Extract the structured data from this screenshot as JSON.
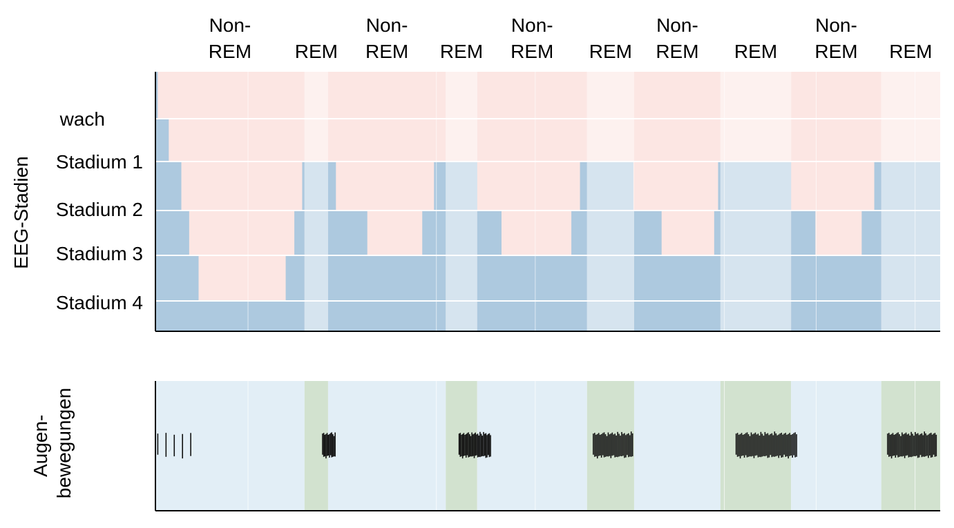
{
  "chart_data": {
    "type": "area",
    "ylabel": "EEG-Stadien",
    "eye_label_lines": [
      "Augen-",
      "bewegungen"
    ],
    "stages": [
      "wach",
      "Stadium 1",
      "Stadium 2",
      "Stadium 3",
      "Stadium 4"
    ],
    "phases": [
      {
        "lines": [
          "Non-",
          "REM"
        ],
        "start": 0.0,
        "end": 0.19
      },
      {
        "lines": [
          "REM"
        ],
        "start": 0.19,
        "end": 0.22
      },
      {
        "lines": [
          "Non-",
          "REM"
        ],
        "start": 0.22,
        "end": 0.37
      },
      {
        "lines": [
          "REM"
        ],
        "start": 0.37,
        "end": 0.41
      },
      {
        "lines": [
          "Non-",
          "REM"
        ],
        "start": 0.41,
        "end": 0.55
      },
      {
        "lines": [
          "REM"
        ],
        "start": 0.55,
        "end": 0.61
      },
      {
        "lines": [
          "Non-",
          "REM"
        ],
        "start": 0.61,
        "end": 0.72
      },
      {
        "lines": [
          "REM"
        ],
        "start": 0.72,
        "end": 0.81
      },
      {
        "lines": [
          "Non-",
          "REM"
        ],
        "start": 0.81,
        "end": 0.925
      },
      {
        "lines": [
          "REM"
        ],
        "start": 0.925,
        "end": 1.0
      }
    ],
    "hypnogram": [
      {
        "t": 0.0,
        "depth": 0.0
      },
      {
        "t": 0.003,
        "depth": 1.0
      },
      {
        "t": 0.017,
        "depth": 2.0
      },
      {
        "t": 0.033,
        "depth": 3.0
      },
      {
        "t": 0.043,
        "depth": 4.0
      },
      {
        "t": 0.055,
        "depth": 5.0
      },
      {
        "t": 0.166,
        "depth": 4.0
      },
      {
        "t": 0.177,
        "depth": 3.0
      },
      {
        "t": 0.187,
        "depth": 2.0
      },
      {
        "t": 0.23,
        "depth": 3.0
      },
      {
        "t": 0.27,
        "depth": 4.0
      },
      {
        "t": 0.34,
        "depth": 3.0
      },
      {
        "t": 0.355,
        "depth": 2.0
      },
      {
        "t": 0.41,
        "depth": 3.0
      },
      {
        "t": 0.441,
        "depth": 4.0
      },
      {
        "t": 0.53,
        "depth": 3.0
      },
      {
        "t": 0.541,
        "depth": 2.0
      },
      {
        "t": 0.609,
        "depth": 3.0
      },
      {
        "t": 0.645,
        "depth": 4.0
      },
      {
        "t": 0.712,
        "depth": 3.0
      },
      {
        "t": 0.717,
        "depth": 2.0
      },
      {
        "t": 0.81,
        "depth": 3.0
      },
      {
        "t": 0.841,
        "depth": 4.0
      },
      {
        "t": 0.9,
        "depth": 3.0
      },
      {
        "t": 0.916,
        "depth": 2.0
      },
      {
        "t": 0.994,
        "depth": 2.0
      }
    ],
    "eye_movements": [
      {
        "start": 0.003,
        "end": 0.045,
        "count": 5
      },
      {
        "start": 0.213,
        "end": 0.229,
        "count": 12
      },
      {
        "start": 0.387,
        "end": 0.427,
        "count": 28
      },
      {
        "start": 0.558,
        "end": 0.608,
        "count": 30
      },
      {
        "start": 0.74,
        "end": 0.817,
        "count": 45
      },
      {
        "start": 0.933,
        "end": 0.995,
        "count": 38
      }
    ],
    "colors": {
      "awake_fill": "#fce6e3",
      "awake_fill_rem": "#fdf1ef",
      "sleep_fill": "#adc9df",
      "sleep_fill_rem": "#d6e4ef",
      "eye_bg": "#e2eef6",
      "eye_bg_rem": "#d2e2cf",
      "eye_mark": "#111111",
      "grid": "#ffffff",
      "axis": "#000000"
    }
  }
}
